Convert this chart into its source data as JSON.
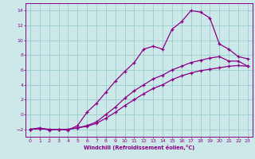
{
  "xlabel": "Windchill (Refroidissement éolien,°C)",
  "background_color": "#cce8e8",
  "grid_color": "#99cccc",
  "line_color": "#880088",
  "xlim": [
    -0.5,
    23.5
  ],
  "ylim": [
    -3.0,
    15.0
  ],
  "xticks": [
    0,
    1,
    2,
    3,
    4,
    5,
    6,
    7,
    8,
    9,
    10,
    11,
    12,
    13,
    14,
    15,
    16,
    17,
    18,
    19,
    20,
    21,
    22,
    23
  ],
  "yticks": [
    -2,
    0,
    2,
    4,
    6,
    8,
    10,
    12,
    14
  ],
  "line1_x": [
    0,
    1,
    2,
    3,
    4,
    5,
    6,
    7,
    8,
    9,
    10,
    11,
    12,
    13,
    14,
    15,
    16,
    17,
    18,
    19,
    20,
    21,
    22,
    23
  ],
  "line1_y": [
    -2.0,
    -1.8,
    -2.1,
    -2.0,
    -2.1,
    -1.5,
    0.3,
    1.5,
    3.0,
    4.5,
    5.8,
    7.0,
    8.8,
    9.2,
    8.8,
    11.5,
    12.5,
    14.0,
    13.8,
    13.0,
    9.5,
    8.8,
    7.8,
    7.5
  ],
  "line2_x": [
    0,
    1,
    2,
    3,
    4,
    5,
    6,
    7,
    8,
    9,
    10,
    11,
    12,
    13,
    14,
    15,
    16,
    17,
    18,
    19,
    20,
    21,
    22,
    23
  ],
  "line2_y": [
    -2.0,
    -1.9,
    -2.0,
    -2.0,
    -2.0,
    -1.8,
    -1.5,
    -1.0,
    0.0,
    1.0,
    2.2,
    3.2,
    4.0,
    4.8,
    5.3,
    6.0,
    6.5,
    7.0,
    7.3,
    7.6,
    7.8,
    7.2,
    7.2,
    6.5
  ],
  "line3_x": [
    0,
    1,
    2,
    3,
    4,
    5,
    6,
    7,
    8,
    9,
    10,
    11,
    12,
    13,
    14,
    15,
    16,
    17,
    18,
    19,
    20,
    21,
    22,
    23
  ],
  "line3_y": [
    -2.0,
    -1.9,
    -2.0,
    -2.0,
    -2.0,
    -1.8,
    -1.6,
    -1.2,
    -0.5,
    0.3,
    1.2,
    2.0,
    2.8,
    3.5,
    4.0,
    4.7,
    5.2,
    5.6,
    5.9,
    6.1,
    6.3,
    6.5,
    6.6,
    6.5
  ]
}
